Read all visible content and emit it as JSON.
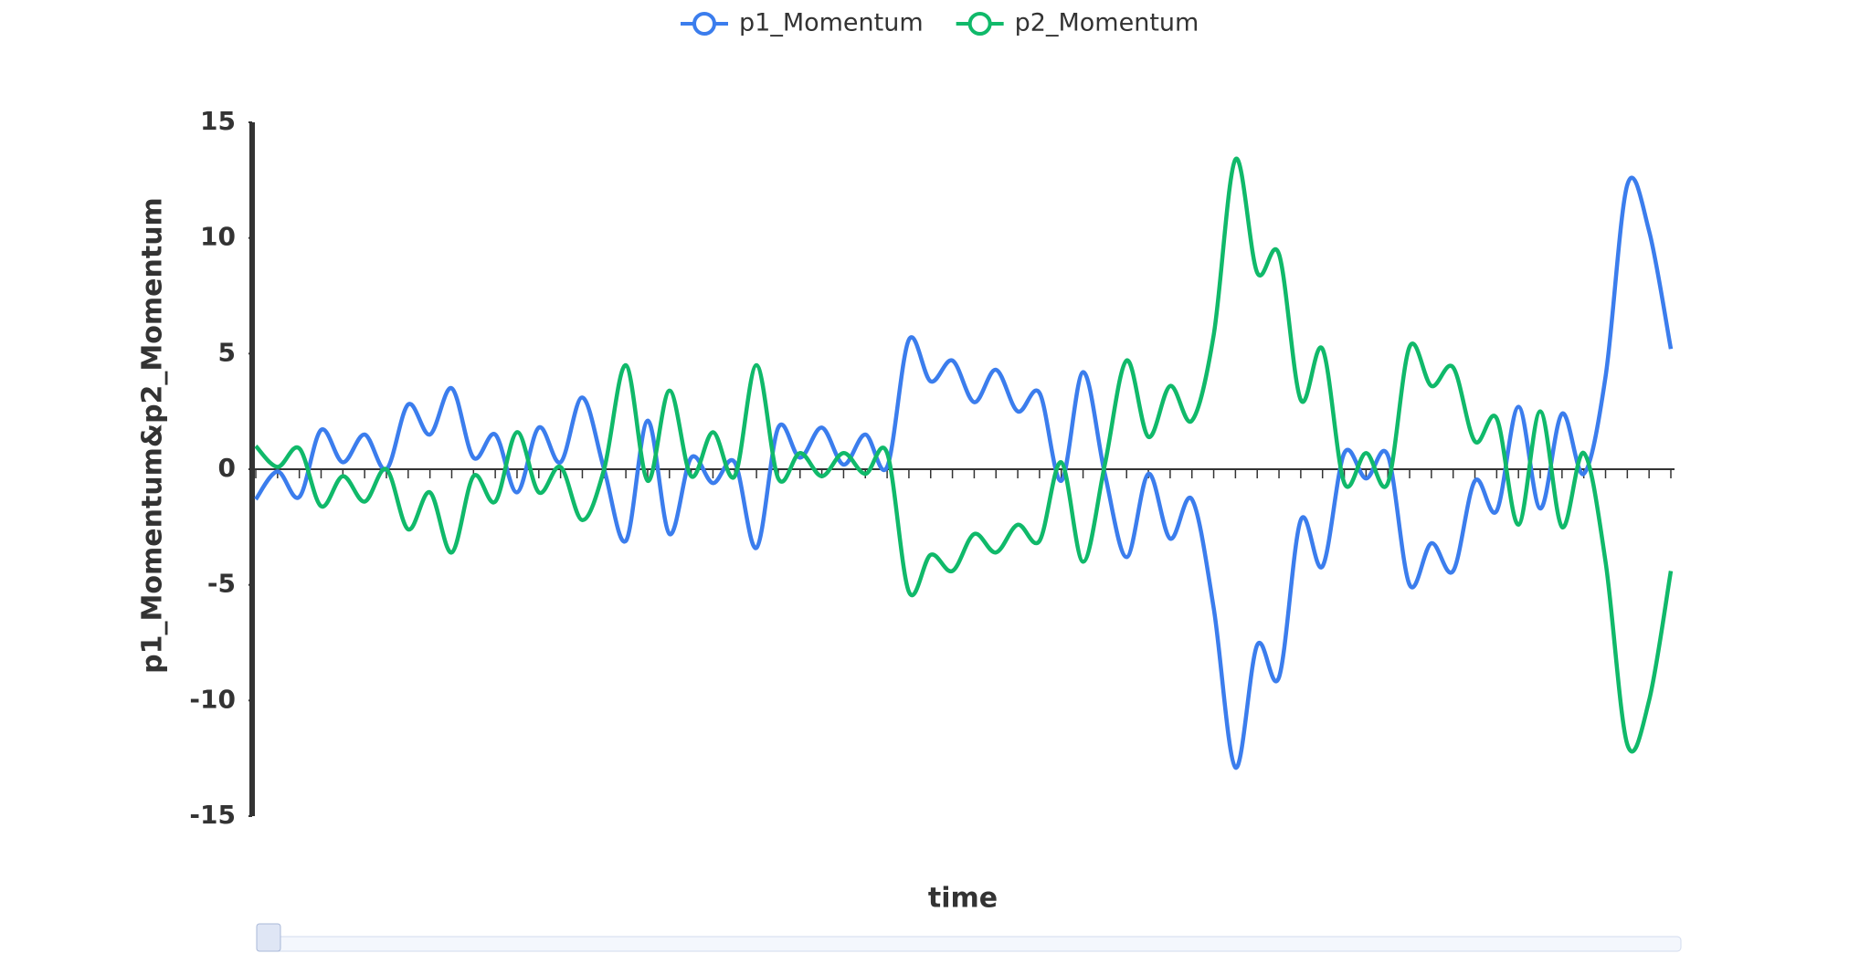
{
  "chart_data": {
    "type": "line",
    "y_label": "p1_Momentum&p2_Momentum",
    "x_label": "time",
    "categories": [
      null,
      null,
      null,
      null,
      null,
      null,
      null,
      null,
      null,
      null,
      null,
      null,
      null,
      null,
      null,
      null,
      null,
      null,
      null,
      null,
      null,
      null,
      null,
      null,
      null,
      null,
      null,
      null,
      null,
      null,
      null,
      null,
      null,
      null,
      null,
      null,
      null,
      null,
      null,
      null,
      null,
      null,
      null,
      null,
      null,
      null,
      null,
      null,
      null,
      null,
      null,
      null,
      null,
      null,
      null,
      null,
      null,
      null,
      null,
      null,
      null,
      null,
      null,
      null,
      null,
      null
    ],
    "series": [
      {
        "name": "p1_Momentum",
        "color": "#3b7ded",
        "values": [
          -1.3,
          -0.1,
          -1.2,
          1.7,
          0.3,
          1.5,
          0,
          2.8,
          1.5,
          3.5,
          0.5,
          1.5,
          -1.0,
          1.8,
          0.3,
          3.1,
          0,
          -3.1,
          2.1,
          -2.8,
          0.5,
          -0.6,
          0.3,
          -3.4,
          1.8,
          0.5,
          1.8,
          0.2,
          1.5,
          0.1,
          5.6,
          3.8,
          4.7,
          2.9,
          4.3,
          2.5,
          3.3,
          -0.5,
          4.2,
          -0.2,
          -3.8,
          -0.2,
          -3.0,
          -1.3,
          -6,
          -12.9,
          -7.6,
          -9.0,
          -2.2,
          -4.2,
          0.7,
          -0.4,
          0.6,
          -5.0,
          -3.2,
          -4.4,
          -0.5,
          -1.8,
          2.7,
          -1.7,
          2.4,
          -0.2,
          4.0,
          12.3,
          10.3,
          5.2
        ]
      },
      {
        "name": "p2_Momentum",
        "color": "#10b96a",
        "values": [
          1.0,
          0.1,
          0.9,
          -1.6,
          -0.3,
          -1.4,
          0,
          -2.6,
          -1.0,
          -3.6,
          -0.3,
          -1.4,
          1.6,
          -1.0,
          0.1,
          -2.2,
          0,
          4.5,
          -0.5,
          3.4,
          -0.3,
          1.6,
          -0.3,
          4.5,
          -0.4,
          0.7,
          -0.3,
          0.7,
          -0.2,
          0.7,
          -5.3,
          -3.7,
          -4.4,
          -2.8,
          -3.6,
          -2.4,
          -3.1,
          0.3,
          -4.0,
          0.2,
          4.7,
          1.4,
          3.6,
          2.1,
          5.8,
          13.4,
          8.5,
          9.3,
          3.0,
          5.2,
          -0.6,
          0.7,
          -0.6,
          5.3,
          3.6,
          4.4,
          1.2,
          2.2,
          -2.4,
          2.5,
          -2.5,
          0.7,
          -4.0,
          -11.9,
          -10.0,
          -4.4
        ]
      }
    ],
    "ylim": [
      -15,
      15
    ],
    "yticks": [
      -15,
      -10,
      -5,
      0,
      5,
      10,
      15
    ],
    "legend": "top",
    "smooth": true
  }
}
